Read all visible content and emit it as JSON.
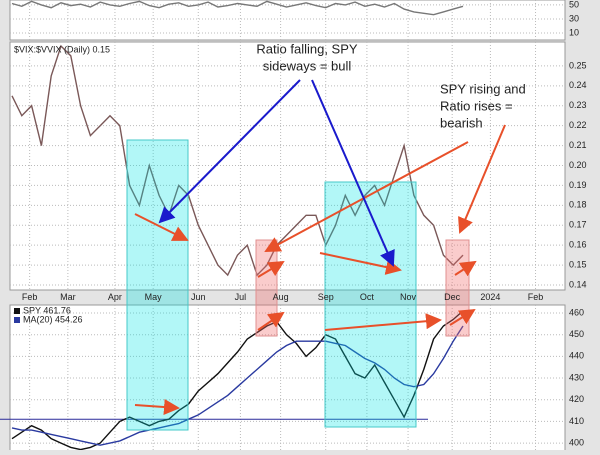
{
  "chart_data": [
    {
      "type": "line",
      "xlim": [
        0,
        56
      ],
      "ylim": [
        0,
        57
      ],
      "yticks": [
        10,
        30,
        50
      ],
      "x": [
        0,
        1,
        2,
        3,
        4,
        5,
        6,
        7,
        8,
        9,
        10,
        11,
        12,
        13,
        14,
        15,
        16,
        17,
        18,
        19,
        20,
        21,
        22,
        23,
        24,
        25,
        26,
        27,
        28,
        29,
        30,
        31,
        32,
        33,
        34,
        35,
        36,
        37,
        38,
        39,
        40,
        41,
        42,
        43,
        44,
        45,
        46
      ],
      "series": [
        {
          "color": "#777777",
          "values": [
            52,
            48,
            55,
            50,
            46,
            53,
            49,
            51,
            47,
            54,
            50,
            48,
            52,
            55,
            49,
            46,
            51,
            53,
            48,
            50,
            54,
            47,
            49,
            52,
            50,
            48,
            55,
            51,
            47,
            50,
            53,
            49,
            46,
            52,
            50,
            54,
            48,
            51,
            47,
            52,
            44,
            40,
            38,
            36,
            40,
            44,
            48
          ]
        }
      ]
    },
    {
      "type": "line",
      "title": "$VIX:$VVIX (Daily) 0.15",
      "xlim": [
        0,
        56
      ],
      "ylim": [
        0.1375,
        0.262
      ],
      "yticks": [
        0.14,
        0.15,
        0.16,
        0.17,
        0.18,
        0.19,
        {
          "value": 0.2,
          "label": "0.20"
        },
        0.21,
        0.22,
        0.23,
        0.24,
        0.25
      ],
      "xticks": [
        {
          "value": 1.8,
          "label": "Feb"
        },
        {
          "value": 5.7,
          "label": "Mar"
        },
        {
          "value": 10.5,
          "label": "Apr"
        },
        {
          "value": 14.4,
          "label": "May"
        },
        {
          "value": 19,
          "label": "Jun"
        },
        {
          "value": 23.3,
          "label": "Jul"
        },
        {
          "value": 27.4,
          "label": "Aug"
        },
        {
          "value": 32,
          "label": "Sep"
        },
        {
          "value": 36.2,
          "label": "Oct"
        },
        {
          "value": 40.4,
          "label": "Nov"
        },
        {
          "value": 44.9,
          "label": "Dec"
        },
        {
          "value": 48.8,
          "label": "2024"
        },
        {
          "value": 53.4,
          "label": "Feb"
        }
      ],
      "x": [
        0,
        1,
        2,
        3,
        4,
        5,
        6,
        7,
        8,
        9,
        10,
        11,
        12,
        13,
        14,
        15,
        16,
        17,
        18,
        19,
        20,
        21,
        22,
        23,
        24,
        25,
        26,
        27,
        28,
        29,
        30,
        31,
        32,
        33,
        34,
        35,
        36,
        37,
        38,
        39,
        40,
        41,
        42,
        43,
        44,
        45,
        46
      ],
      "series": [
        {
          "color": "#7a5858",
          "values": [
            0.235,
            0.225,
            0.23,
            0.21,
            0.245,
            0.26,
            0.255,
            0.23,
            0.215,
            0.22,
            0.225,
            0.22,
            0.19,
            0.18,
            0.2,
            0.185,
            0.175,
            0.19,
            0.185,
            0.17,
            0.16,
            0.15,
            0.145,
            0.155,
            0.16,
            0.145,
            0.15,
            0.16,
            0.165,
            0.17,
            0.175,
            0.175,
            0.16,
            0.17,
            0.185,
            0.175,
            0.185,
            0.19,
            0.18,
            0.195,
            0.21,
            0.185,
            0.175,
            0.17,
            0.155,
            0.15,
            0.155
          ]
        }
      ],
      "annotations": [
        {
          "color": "#1a1acc",
          "lines": [
            "Ratio falling, SPY",
            "sideways = bull"
          ]
        },
        {
          "color": "#e8502a",
          "lines": [
            "SPY rising and",
            "Ratio rises =",
            "bearish"
          ]
        }
      ]
    },
    {
      "type": "line",
      "xlim": [
        0,
        56
      ],
      "ylim": [
        396.8,
        463.7
      ],
      "yticks": [
        400,
        410,
        420,
        430,
        440,
        450,
        460
      ],
      "reference_line": {
        "value": 411,
        "color": "#2a2a9a"
      },
      "x": [
        0,
        1,
        2,
        3,
        4,
        5,
        6,
        7,
        8,
        9,
        10,
        11,
        12,
        13,
        14,
        15,
        16,
        17,
        18,
        19,
        20,
        21,
        22,
        23,
        24,
        25,
        26,
        27,
        28,
        29,
        30,
        31,
        32,
        33,
        34,
        35,
        36,
        37,
        38,
        39,
        40,
        41,
        42,
        43,
        44,
        45,
        46
      ],
      "series": [
        {
          "name": "SPY 461.76",
          "color": "#111111",
          "values": [
            402,
            405,
            408,
            406,
            402,
            400,
            398,
            397,
            398,
            400,
            405,
            410,
            412,
            410,
            408,
            410,
            411,
            415,
            418,
            424,
            428,
            432,
            437,
            442,
            448,
            451,
            454,
            456,
            450,
            446,
            440,
            444,
            450,
            448,
            440,
            432,
            430,
            436,
            428,
            420,
            412,
            422,
            434,
            448,
            454,
            457,
            461
          ]
        },
        {
          "name": "MA(20) 454.26",
          "color": "#2a3aa0",
          "values": [
            407,
            406,
            406,
            405,
            404,
            403,
            402,
            401,
            400,
            399,
            400,
            401,
            403,
            405,
            406,
            407,
            408,
            409,
            411,
            413,
            416,
            419,
            422,
            426,
            430,
            434,
            438,
            442,
            445,
            447,
            447,
            447,
            447,
            446,
            445,
            442,
            439,
            437,
            434,
            430,
            427,
            426,
            427,
            432,
            439,
            447,
            454
          ]
        }
      ]
    }
  ]
}
